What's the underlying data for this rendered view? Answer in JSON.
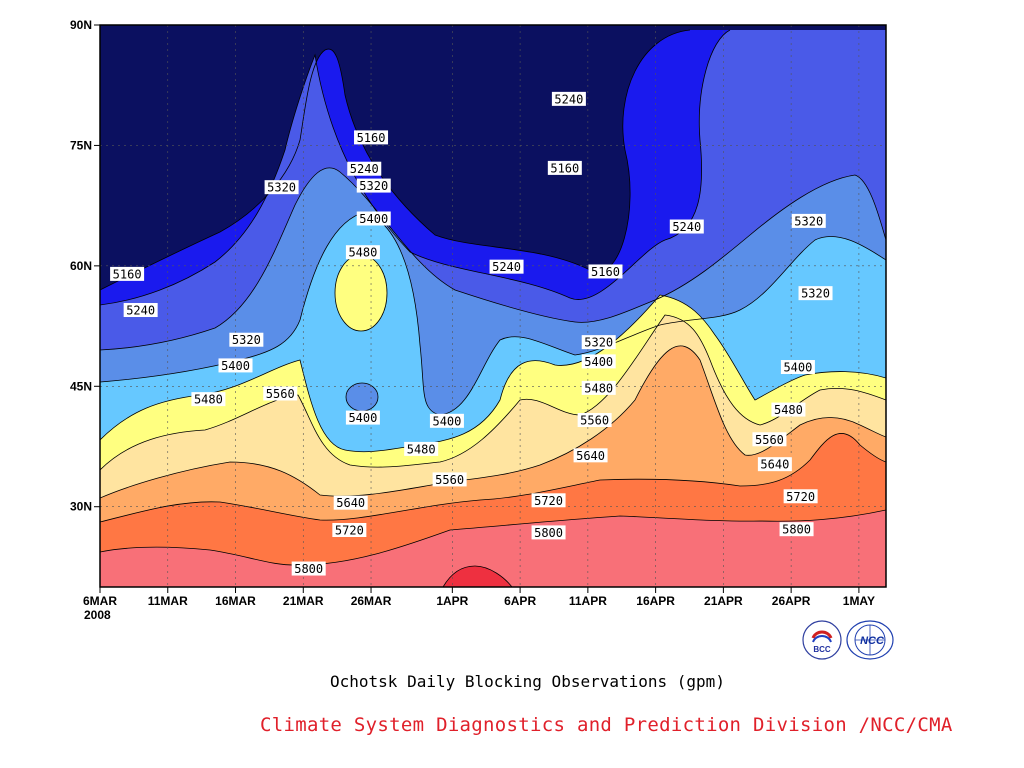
{
  "chart_data": {
    "type": "contour",
    "title": "Ochotsk Daily Blocking Observations (gpm)",
    "y_ticks": [
      "90N",
      "75N",
      "60N",
      "45N",
      "30N"
    ],
    "y_values": [
      90,
      75,
      60,
      45,
      30
    ],
    "ylim": [
      20,
      90
    ],
    "x_ticks": [
      "6MAR",
      "11MAR",
      "16MAR",
      "21MAR",
      "26MAR",
      "1APR",
      "6APR",
      "11APR",
      "16APR",
      "21APR",
      "26APR",
      "1MAY"
    ],
    "x_year": "2008",
    "x_days": [
      0,
      5,
      10,
      15,
      20,
      26,
      31,
      36,
      41,
      46,
      51,
      56
    ],
    "xlim": [
      0,
      58
    ],
    "grid": true,
    "levels": [
      5160,
      5240,
      5320,
      5400,
      5480,
      5560,
      5640,
      5720,
      5800
    ],
    "colors": {
      "below_5160": "#0b1060",
      "5160_5240": "#1a1aee",
      "5240_5320": "#4a5ae8",
      "5320_5400": "#5a8ee8",
      "5400_5480": "#66c8ff",
      "5480_5560": "#ffff80",
      "5560_5640": "#ffe4a0",
      "5640_5720": "#ffaa66",
      "5720_5800": "#ff7744",
      "5800_5880": "#f87078",
      "above_5880": "#ee3040"
    },
    "contour_labels": [
      {
        "text": "5160",
        "day": 2,
        "lat": 59
      },
      {
        "text": "5240",
        "day": 3,
        "lat": 54.5
      },
      {
        "text": "5320",
        "day": 10.8,
        "lat": 50.8
      },
      {
        "text": "5400",
        "day": 10,
        "lat": 47.6
      },
      {
        "text": "5480",
        "day": 8,
        "lat": 43.4
      },
      {
        "text": "5560",
        "day": 13.3,
        "lat": 44.1
      },
      {
        "text": "5320",
        "day": 13.4,
        "lat": 69.8
      },
      {
        "text": "5160",
        "day": 20,
        "lat": 76
      },
      {
        "text": "5240",
        "day": 19.5,
        "lat": 72.1
      },
      {
        "text": "5320",
        "day": 20.2,
        "lat": 70
      },
      {
        "text": "5400",
        "day": 20.2,
        "lat": 65.9
      },
      {
        "text": "5480",
        "day": 19.4,
        "lat": 61.7
      },
      {
        "text": "5400",
        "day": 19.4,
        "lat": 41.1
      },
      {
        "text": "5480",
        "day": 23.7,
        "lat": 37.2
      },
      {
        "text": "5400",
        "day": 25.6,
        "lat": 40.7
      },
      {
        "text": "5560",
        "day": 25.8,
        "lat": 33.4
      },
      {
        "text": "5640",
        "day": 18.5,
        "lat": 30.5
      },
      {
        "text": "5720",
        "day": 18.4,
        "lat": 27.1
      },
      {
        "text": "5800",
        "day": 15.4,
        "lat": 22.3
      },
      {
        "text": "5240",
        "day": 30,
        "lat": 59.9
      },
      {
        "text": "5240",
        "day": 34.6,
        "lat": 80.8
      },
      {
        "text": "5160",
        "day": 34.3,
        "lat": 72.2
      },
      {
        "text": "5160",
        "day": 37.3,
        "lat": 59.3
      },
      {
        "text": "5320",
        "day": 36.8,
        "lat": 50.5
      },
      {
        "text": "5400",
        "day": 36.8,
        "lat": 48.1
      },
      {
        "text": "5480",
        "day": 36.8,
        "lat": 44.8
      },
      {
        "text": "5560",
        "day": 36.5,
        "lat": 40.8
      },
      {
        "text": "5640",
        "day": 36.2,
        "lat": 36.4
      },
      {
        "text": "5720",
        "day": 33.1,
        "lat": 30.8
      },
      {
        "text": "5800",
        "day": 33.1,
        "lat": 26.8
      },
      {
        "text": "5240",
        "day": 43.3,
        "lat": 64.9
      },
      {
        "text": "5320",
        "day": 52.3,
        "lat": 65.6
      },
      {
        "text": "5320",
        "day": 52.8,
        "lat": 56.6
      },
      {
        "text": "5400",
        "day": 51.5,
        "lat": 47.4
      },
      {
        "text": "5480",
        "day": 50.8,
        "lat": 42.1
      },
      {
        "text": "5560",
        "day": 49.4,
        "lat": 38.4
      },
      {
        "text": "5640",
        "day": 49.8,
        "lat": 35.3
      },
      {
        "text": "5720",
        "day": 51.7,
        "lat": 31.3
      },
      {
        "text": "5800",
        "day": 51.4,
        "lat": 27.2
      }
    ]
  },
  "footer": {
    "caption": "Ochotsk Daily Blocking Observations (gpm)",
    "credit": "Climate System Diagnostics and Prediction Division /NCC/CMA",
    "logo_left": "BCC",
    "logo_right": "NCC"
  }
}
